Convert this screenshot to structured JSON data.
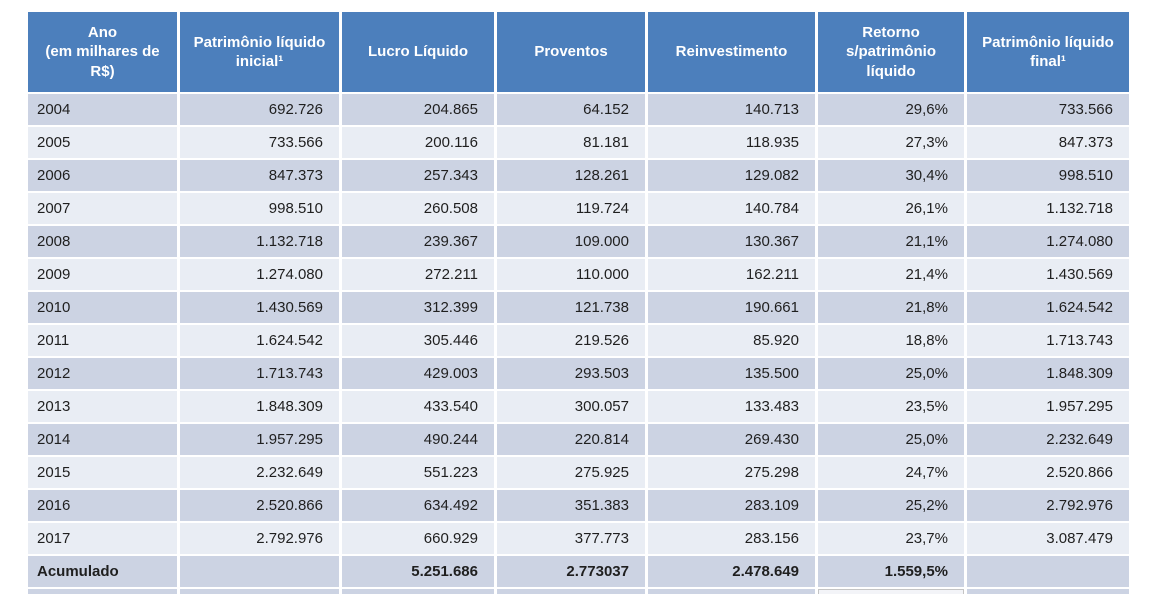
{
  "chart_data": {
    "type": "table",
    "columns": [
      "Ano\n(em milhares de R$)",
      "Patrimônio líquido inicial¹",
      "Lucro Líquido",
      "Proventos",
      "Reinvestimento",
      "Retorno s/patrimônio líquido",
      "Patrimônio líquido final¹"
    ],
    "rows": [
      {
        "cells": [
          "2004",
          "692.726",
          "204.865",
          "64.152",
          "140.713",
          "29,6%",
          "733.566"
        ],
        "band": "dark",
        "bold": false
      },
      {
        "cells": [
          "2005",
          "733.566",
          "200.116",
          "81.181",
          "118.935",
          "27,3%",
          "847.373"
        ],
        "band": "light",
        "bold": false
      },
      {
        "cells": [
          "2006",
          "847.373",
          "257.343",
          "128.261",
          "129.082",
          "30,4%",
          "998.510"
        ],
        "band": "dark",
        "bold": false
      },
      {
        "cells": [
          "2007",
          "998.510",
          "260.508",
          "119.724",
          "140.784",
          "26,1%",
          "1.132.718"
        ],
        "band": "light",
        "bold": false
      },
      {
        "cells": [
          "2008",
          "1.132.718",
          "239.367",
          "109.000",
          "130.367",
          "21,1%",
          "1.274.080"
        ],
        "band": "dark",
        "bold": false
      },
      {
        "cells": [
          "2009",
          "1.274.080",
          "272.211",
          "110.000",
          "162.211",
          "21,4%",
          "1.430.569"
        ],
        "band": "light",
        "bold": false
      },
      {
        "cells": [
          "2010",
          "1.430.569",
          "312.399",
          "121.738",
          "190.661",
          "21,8%",
          "1.624.542"
        ],
        "band": "dark",
        "bold": false
      },
      {
        "cells": [
          "2011",
          "1.624.542",
          "305.446",
          "219.526",
          "85.920",
          "18,8%",
          "1.713.743"
        ],
        "band": "light",
        "bold": false
      },
      {
        "cells": [
          "2012",
          "1.713.743",
          "429.003",
          "293.503",
          "135.500",
          "25,0%",
          "1.848.309"
        ],
        "band": "dark",
        "bold": false
      },
      {
        "cells": [
          "2013",
          "1.848.309",
          "433.540",
          "300.057",
          "133.483",
          "23,5%",
          "1.957.295"
        ],
        "band": "light",
        "bold": false
      },
      {
        "cells": [
          "2014",
          "1.957.295",
          "490.244",
          "220.814",
          "269.430",
          "25,0%",
          "2.232.649"
        ],
        "band": "dark",
        "bold": false
      },
      {
        "cells": [
          "2015",
          "2.232.649",
          "551.223",
          "275.925",
          "275.298",
          "24,7%",
          "2.520.866"
        ],
        "band": "light",
        "bold": false
      },
      {
        "cells": [
          "2016",
          "2.520.866",
          "634.492",
          "351.383",
          "283.109",
          "25,2%",
          "2.792.976"
        ],
        "band": "dark",
        "bold": false
      },
      {
        "cells": [
          "2017",
          "2.792.976",
          "660.929",
          "377.773",
          "283.156",
          "23,7%",
          "3.087.479"
        ],
        "band": "light",
        "bold": false
      },
      {
        "cells": [
          "Acumulado",
          "",
          "5.251.686",
          "2.773037",
          "2.478.649",
          "1.559,5%",
          ""
        ],
        "band": "dark",
        "bold": true
      }
    ]
  },
  "colors": {
    "header_bg": "#4C7FBC",
    "header_text": "#FFFFFF",
    "band_dark": "#CCD3E3",
    "band_light": "#E9EDF4",
    "cell_text": "#1F1F1F",
    "page_bg": "#FFFFFF"
  }
}
